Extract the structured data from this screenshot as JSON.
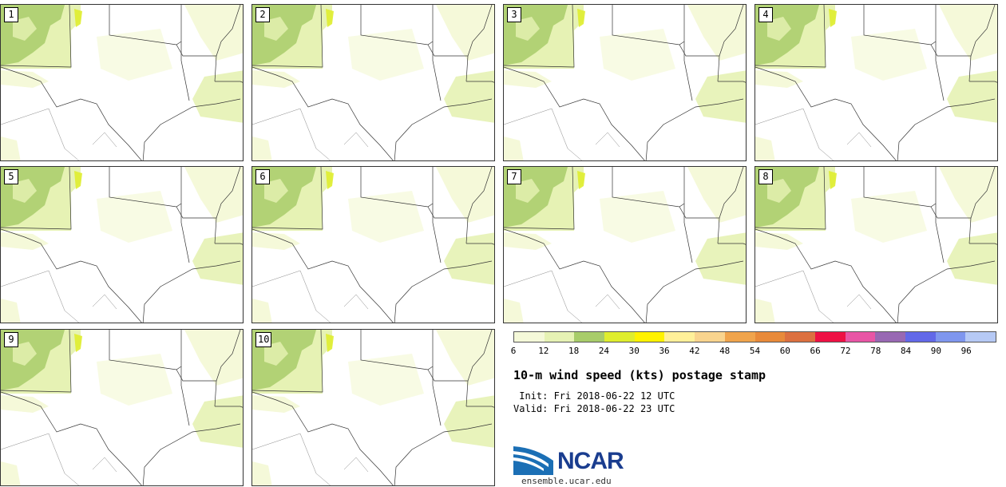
{
  "panels": [
    "1",
    "2",
    "3",
    "4",
    "5",
    "6",
    "7",
    "8",
    "9",
    "10"
  ],
  "colorbar": {
    "colors": [
      "#f5f9d9",
      "#e6f2b4",
      "#a8cc6a",
      "#dfed2e",
      "#fff200",
      "#fff099",
      "#f9d48e",
      "#f0a44c",
      "#e88a3a",
      "#dc7040",
      "#ee1144",
      "#e855a5",
      "#9868b3",
      "#6268e8",
      "#7f96ee",
      "#b6c9f5"
    ],
    "ticks": [
      "6",
      "12",
      "18",
      "24",
      "30",
      "36",
      "42",
      "48",
      "54",
      "60",
      "66",
      "72",
      "78",
      "84",
      "90",
      "96"
    ]
  },
  "title": "10-m wind speed (kts) postage stamp",
  "init": " Init: Fri 2018-06-22 12 UTC",
  "valid": "Valid: Fri 2018-06-22 23 UTC",
  "logo": "NCAR",
  "site": "ensemble.ucar.edu"
}
